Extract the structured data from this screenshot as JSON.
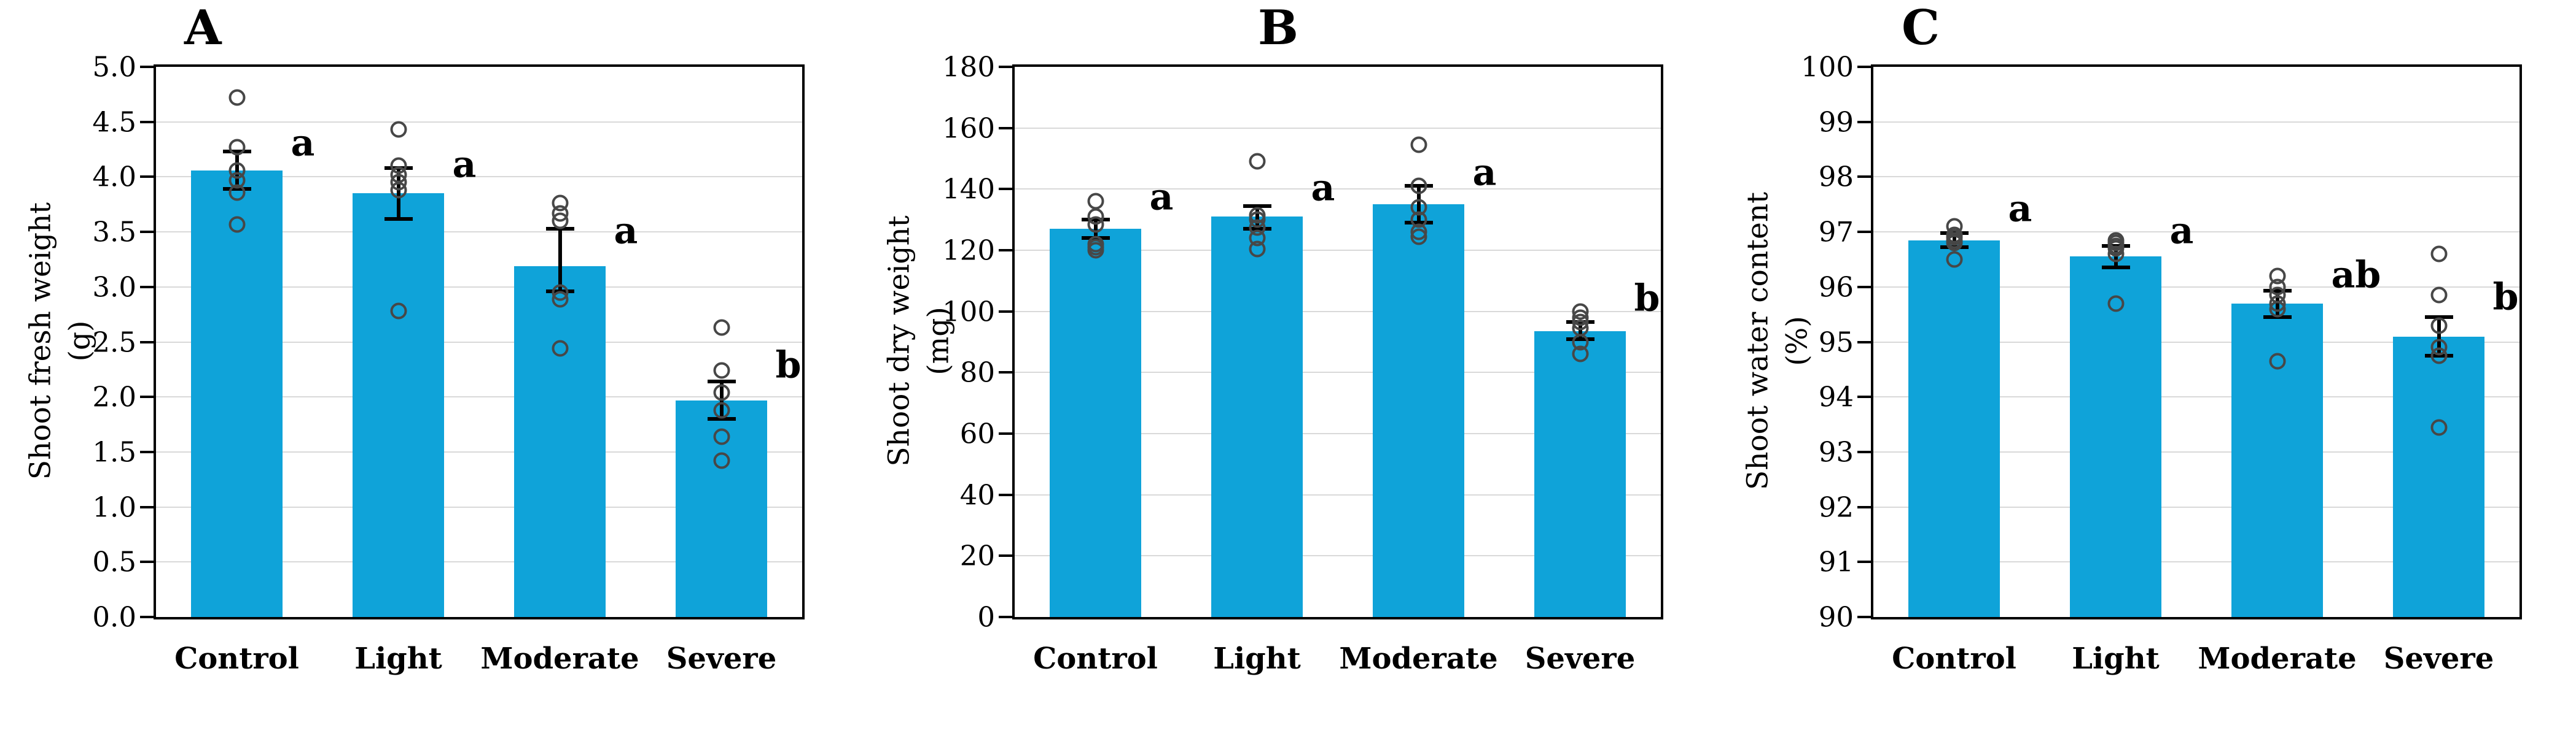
{
  "figure": {
    "background": "#ffffff",
    "bar_color": "#0fa3d9",
    "grid_color": "#d9d9d9",
    "axis_color": "#000000",
    "point_stroke_color": "#474747",
    "text_color": "#000000"
  },
  "chart_data": [
    {
      "id": "A",
      "type": "bar",
      "title": "A",
      "ylabel": "Shoot fresh weight",
      "yunit": "(g)",
      "ylim": [
        0,
        5
      ],
      "ytick_step": 0.5,
      "ytick_decimals": 1,
      "grid": true,
      "categories": [
        "Control",
        "Light",
        "Moderate",
        "Severe"
      ],
      "bars": [
        {
          "category": "Control",
          "mean": 4.06,
          "err_low": 3.89,
          "err_high": 4.23,
          "sig_letter": "a",
          "letter_y": 4.3,
          "points": [
            4.72,
            4.27,
            4.06,
            3.97,
            3.86,
            3.57
          ]
        },
        {
          "category": "Light",
          "mean": 3.85,
          "err_low": 3.62,
          "err_high": 4.08,
          "sig_letter": "a",
          "letter_y": 4.1,
          "points": [
            4.43,
            4.1,
            4.02,
            3.95,
            3.88,
            2.78
          ]
        },
        {
          "category": "Moderate",
          "mean": 3.19,
          "err_low": 2.96,
          "err_high": 3.53,
          "sig_letter": "a",
          "letter_y": 3.5,
          "points": [
            3.76,
            3.67,
            3.6,
            2.95,
            2.89,
            2.44
          ]
        },
        {
          "category": "Severe",
          "mean": 1.97,
          "err_low": 1.8,
          "err_high": 2.14,
          "sig_letter": "b",
          "letter_y": 2.28,
          "points": [
            2.63,
            2.24,
            2.04,
            1.88,
            1.64,
            1.42
          ]
        }
      ]
    },
    {
      "id": "B",
      "type": "bar",
      "title": "B",
      "ylabel": "Shoot dry weight",
      "yunit": "(mg)",
      "ylim": [
        0,
        180
      ],
      "ytick_step": 20,
      "ytick_decimals": 0,
      "grid": true,
      "categories": [
        "Control",
        "Light",
        "Moderate",
        "Severe"
      ],
      "bars": [
        {
          "category": "Control",
          "mean": 127,
          "err_low": 124,
          "err_high": 130,
          "sig_letter": "a",
          "letter_y": 137,
          "points": [
            136,
            131,
            128.5,
            122,
            121,
            120
          ]
        },
        {
          "category": "Light",
          "mean": 131,
          "err_low": 127,
          "err_high": 134.5,
          "sig_letter": "a",
          "letter_y": 140,
          "points": [
            149,
            131.5,
            130,
            127.5,
            124,
            120.5
          ]
        },
        {
          "category": "Moderate",
          "mean": 135,
          "err_low": 129,
          "err_high": 141,
          "sig_letter": "a",
          "letter_y": 145,
          "points": [
            154.5,
            141,
            134,
            130,
            126,
            124.5
          ]
        },
        {
          "category": "Severe",
          "mean": 93.5,
          "err_low": 91,
          "err_high": 96.5,
          "sig_letter": "b",
          "letter_y": 104,
          "points": [
            100,
            98,
            96.5,
            94.5,
            90,
            86
          ]
        }
      ]
    },
    {
      "id": "C",
      "type": "bar",
      "title": "C",
      "ylabel": "Shoot water content",
      "yunit": "(%)",
      "ylim": [
        90,
        100
      ],
      "ytick_step": 1,
      "ytick_decimals": 0,
      "grid": true,
      "categories": [
        "Control",
        "Light",
        "Moderate",
        "Severe"
      ],
      "bars": [
        {
          "category": "Control",
          "mean": 96.85,
          "err_low": 96.72,
          "err_high": 96.98,
          "sig_letter": "a",
          "letter_y": 97.4,
          "points": [
            97.1,
            96.95,
            96.9,
            96.85,
            96.8,
            96.5
          ]
        },
        {
          "category": "Light",
          "mean": 96.55,
          "err_low": 96.35,
          "err_high": 96.75,
          "sig_letter": "a",
          "letter_y": 97.0,
          "points": [
            96.85,
            96.8,
            96.75,
            96.7,
            96.6,
            95.7
          ]
        },
        {
          "category": "Moderate",
          "mean": 95.7,
          "err_low": 95.45,
          "err_high": 95.93,
          "sig_letter": "ab",
          "letter_y": 96.2,
          "points": [
            96.2,
            96.0,
            95.85,
            95.7,
            95.6,
            94.65
          ]
        },
        {
          "category": "Severe",
          "mean": 95.1,
          "err_low": 94.75,
          "err_high": 95.45,
          "sig_letter": "b",
          "letter_y": 95.8,
          "points": [
            96.6,
            95.85,
            95.3,
            94.9,
            94.75,
            93.45
          ]
        }
      ]
    }
  ]
}
